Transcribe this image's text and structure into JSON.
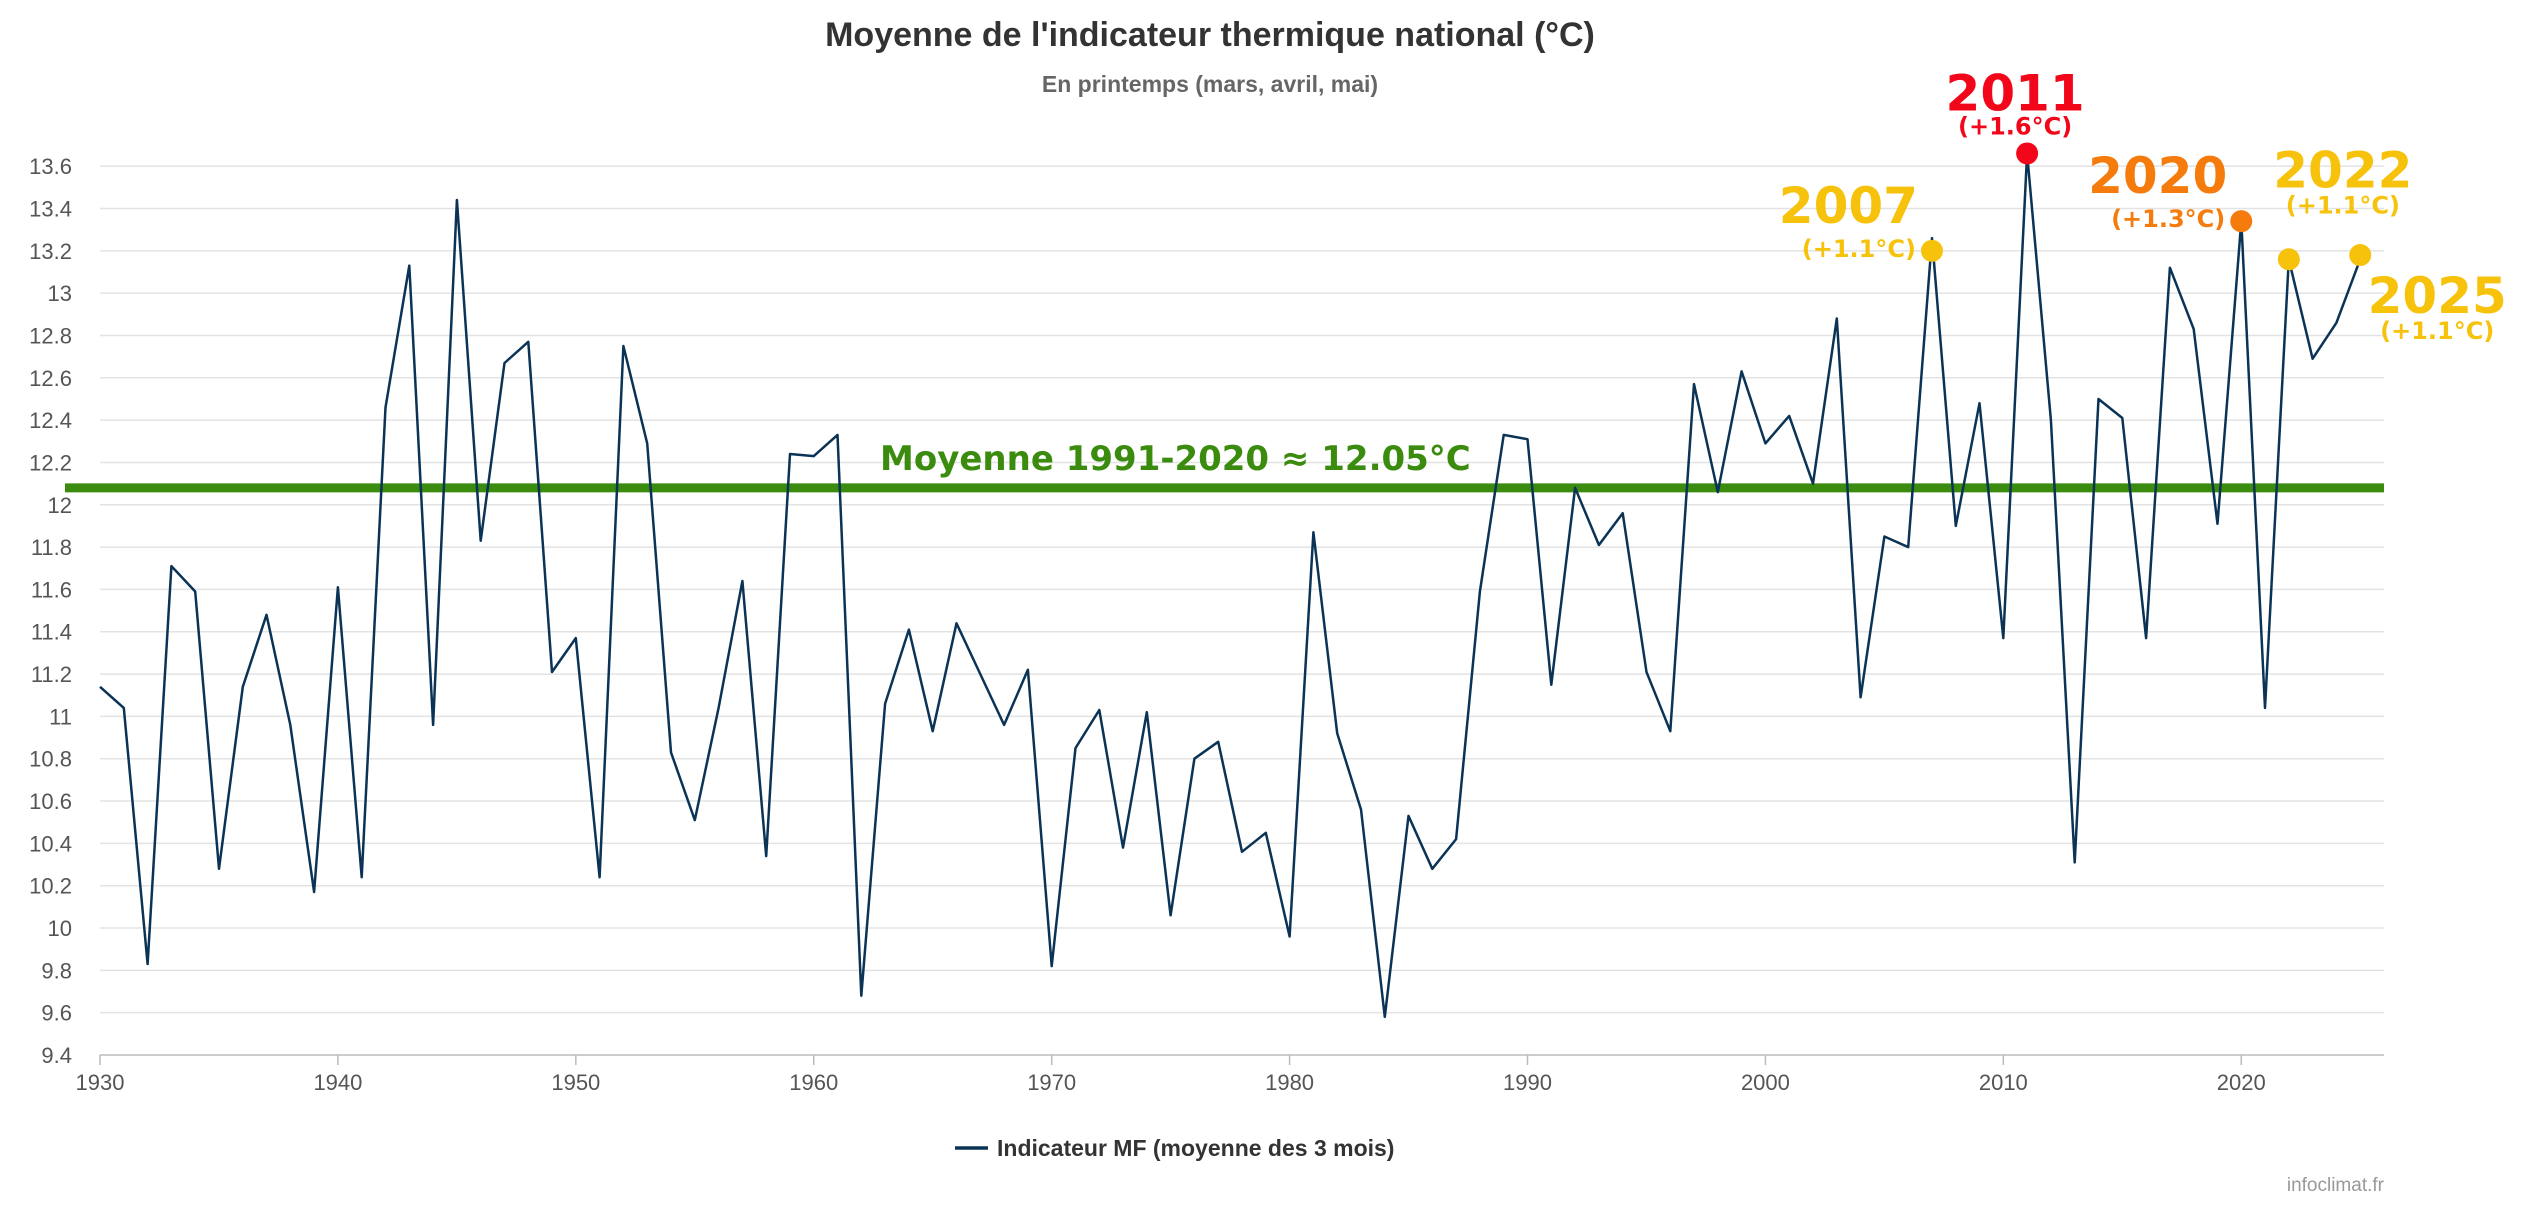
{
  "chart_data": {
    "type": "line",
    "title": "Moyenne de l'indicateur thermique national (°C)",
    "subtitle": "En printemps (mars, avril, mai)",
    "xlabel": "",
    "ylabel": "",
    "xlim": [
      1930,
      2026
    ],
    "ylim": [
      9.4,
      13.7
    ],
    "x_ticks": [
      "1930",
      "1940",
      "1950",
      "1960",
      "1970",
      "1980",
      "1990",
      "2000",
      "2010",
      "2020"
    ],
    "y_ticks": [
      "9.4",
      "9.6",
      "9.8",
      "10",
      "10.2",
      "10.4",
      "10.6",
      "10.8",
      "11",
      "11.2",
      "11.4",
      "11.6",
      "11.8",
      "12",
      "12.2",
      "12.4",
      "12.6",
      "12.8",
      "13",
      "13.2",
      "13.4",
      "13.6"
    ],
    "grid": true,
    "legend_position": "bottom-center",
    "series": [
      {
        "name": "Indicateur MF (moyenne des 3 mois)",
        "color": "#0b3356",
        "x": [
          1930,
          1931,
          1932,
          1933,
          1934,
          1935,
          1936,
          1937,
          1938,
          1939,
          1940,
          1941,
          1942,
          1943,
          1944,
          1945,
          1946,
          1947,
          1948,
          1949,
          1950,
          1951,
          1952,
          1953,
          1954,
          1955,
          1956,
          1957,
          1958,
          1959,
          1960,
          1961,
          1962,
          1963,
          1964,
          1965,
          1966,
          1967,
          1968,
          1969,
          1970,
          1971,
          1972,
          1973,
          1974,
          1975,
          1976,
          1977,
          1978,
          1979,
          1980,
          1981,
          1982,
          1983,
          1984,
          1985,
          1986,
          1987,
          1988,
          1989,
          1990,
          1991,
          1992,
          1993,
          1994,
          1995,
          1996,
          1997,
          1998,
          1999,
          2000,
          2001,
          2002,
          2003,
          2004,
          2005,
          2006,
          2007,
          2008,
          2009,
          2010,
          2011,
          2012,
          2013,
          2014,
          2015,
          2016,
          2017,
          2018,
          2019,
          2020,
          2021,
          2022,
          2023,
          2024,
          2025
        ],
        "values": [
          11.14,
          11.04,
          9.83,
          11.71,
          11.59,
          10.28,
          11.14,
          11.48,
          10.96,
          10.17,
          11.61,
          10.24,
          12.46,
          13.13,
          10.96,
          13.44,
          11.83,
          12.67,
          12.77,
          11.21,
          11.37,
          10.24,
          12.75,
          12.29,
          10.83,
          10.51,
          11.04,
          11.64,
          10.34,
          12.24,
          12.23,
          12.33,
          9.68,
          11.06,
          11.41,
          10.93,
          11.44,
          11.2,
          10.96,
          11.22,
          9.82,
          10.85,
          11.03,
          10.38,
          11.02,
          10.06,
          10.8,
          10.88,
          10.36,
          10.45,
          9.96,
          11.87,
          10.92,
          10.56,
          9.58,
          10.53,
          10.28,
          10.42,
          11.59,
          12.33,
          12.31,
          11.15,
          12.08,
          11.81,
          11.96,
          11.21,
          10.93,
          12.57,
          12.06,
          12.63,
          12.29,
          12.42,
          12.1,
          12.88,
          11.09,
          11.85,
          11.8,
          13.26,
          11.9,
          12.48,
          11.37,
          13.66,
          12.4,
          10.31,
          12.5,
          12.41,
          11.37,
          13.12,
          12.83,
          11.91,
          13.34,
          11.04,
          13.16,
          12.69,
          12.86,
          13.16
        ]
      }
    ],
    "reference_line": {
      "label": "Moyenne 1991-2020  ≈ 12.05°C",
      "value": 12.08,
      "color": "#3b8c0e"
    },
    "annotations": [
      {
        "year": "2007",
        "x": 2007,
        "y": 13.2,
        "delta": "(+1.1°C)",
        "color": "#f6c20c",
        "label_side": "left"
      },
      {
        "year": "2011",
        "x": 2011,
        "y": 13.66,
        "delta": "(+1.6°C)",
        "color": "#f2071a",
        "label_side": "above"
      },
      {
        "year": "2020",
        "x": 2020,
        "y": 13.34,
        "delta": "(+1.3°C)",
        "color": "#f47b0c",
        "label_side": "left"
      },
      {
        "year": "2022",
        "x": 2022,
        "y": 13.16,
        "delta": "(+1.1°C)",
        "color": "#f6c20c",
        "label_side": "above-right"
      },
      {
        "year": "2025",
        "x": 2025,
        "y": 13.18,
        "delta": "(+1.1°C)",
        "color": "#f6c20c",
        "label_side": "below-right"
      }
    ],
    "credits": "infoclimat.fr"
  }
}
